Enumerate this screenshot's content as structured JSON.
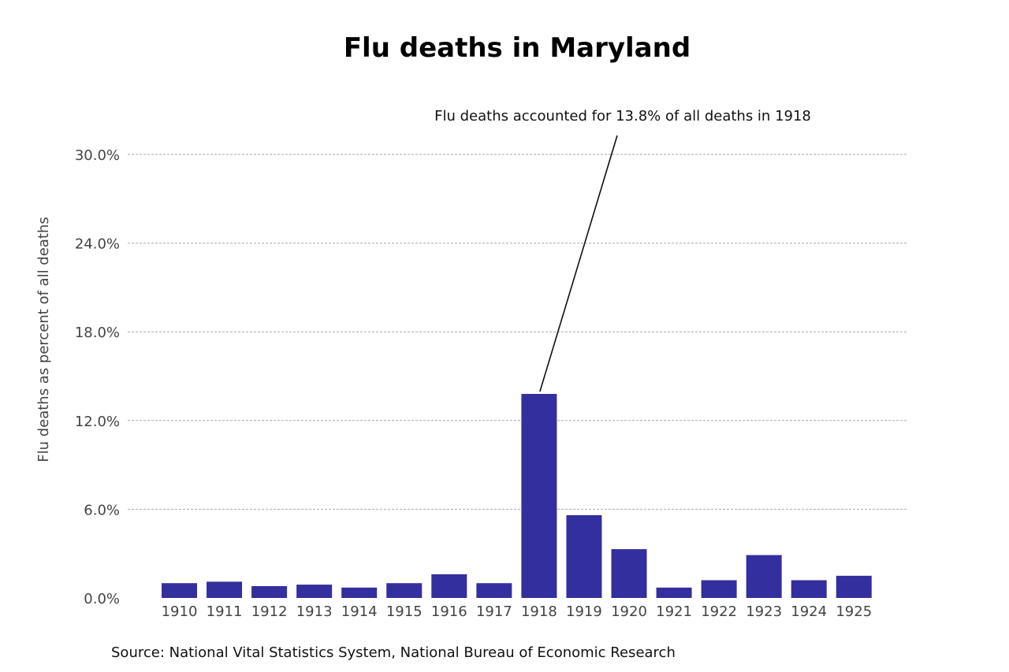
{
  "chart_data": {
    "type": "bar",
    "title": "Flu deaths in Maryland",
    "ylabel": "Flu deaths as percent of all deaths",
    "xlabel": "",
    "categories": [
      "1910",
      "1911",
      "1912",
      "1913",
      "1914",
      "1915",
      "1916",
      "1917",
      "1918",
      "1919",
      "1920",
      "1921",
      "1922",
      "1923",
      "1924",
      "1925"
    ],
    "values": [
      1.0,
      1.1,
      0.8,
      0.9,
      0.7,
      1.0,
      1.6,
      1.0,
      13.8,
      5.6,
      3.3,
      0.7,
      1.2,
      2.9,
      1.2,
      1.5
    ],
    "ylim": [
      0,
      30
    ],
    "yticks": [
      "0.0%",
      "6.0%",
      "12.0%",
      "18.0%",
      "24.0%",
      "30.0%"
    ],
    "grid": true,
    "bar_color": "#332f9e",
    "annotation": {
      "text": "Flu deaths accounted for 13.8% of all deaths in 1918",
      "target_category": "1918"
    },
    "source": "Source: National Vital Statistics System, National Bureau of Economic Research"
  }
}
